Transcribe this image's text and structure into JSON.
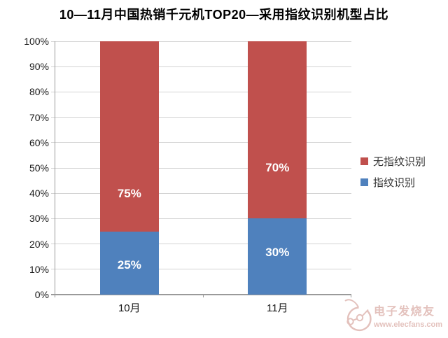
{
  "title": "10—11月中国热销千元机TOP20—采用指纹识别机型占比",
  "chart_data": {
    "type": "bar",
    "stacked": true,
    "title": "10—11月中国热销千元机TOP20—采用指纹识别机型占比",
    "categories": [
      "10月",
      "11月"
    ],
    "series": [
      {
        "name": "指纹识别",
        "color": "#4F81BD",
        "values": [
          25,
          30
        ],
        "value_labels": [
          "25%",
          "30%"
        ]
      },
      {
        "name": "无指纹识别",
        "color": "#C0504D",
        "values": [
          75,
          70
        ],
        "value_labels": [
          "75%",
          "70%"
        ]
      }
    ],
    "ylim": [
      0,
      100
    ],
    "ytick_labels": [
      "0%",
      "10%",
      "20%",
      "30%",
      "40%",
      "50%",
      "60%",
      "70%",
      "80%",
      "90%",
      "100%"
    ],
    "grid": true,
    "legend_position": "right",
    "xlabel": "",
    "ylabel": ""
  },
  "legend": {
    "items": [
      {
        "label": "无指纹识别",
        "color": "#C0504D"
      },
      {
        "label": "指纹识别",
        "color": "#4F81BD"
      }
    ]
  },
  "watermark": {
    "site_name": "电子发烧友",
    "site_url": "www.elecfans.com"
  },
  "colors": {
    "series_red": "#C0504D",
    "series_blue": "#4F81BD",
    "gridline": "#d4d4d4",
    "axis": "#9a9a9a",
    "bar_label_text": "#ffffff",
    "watermark": "#c9distinct"
  }
}
